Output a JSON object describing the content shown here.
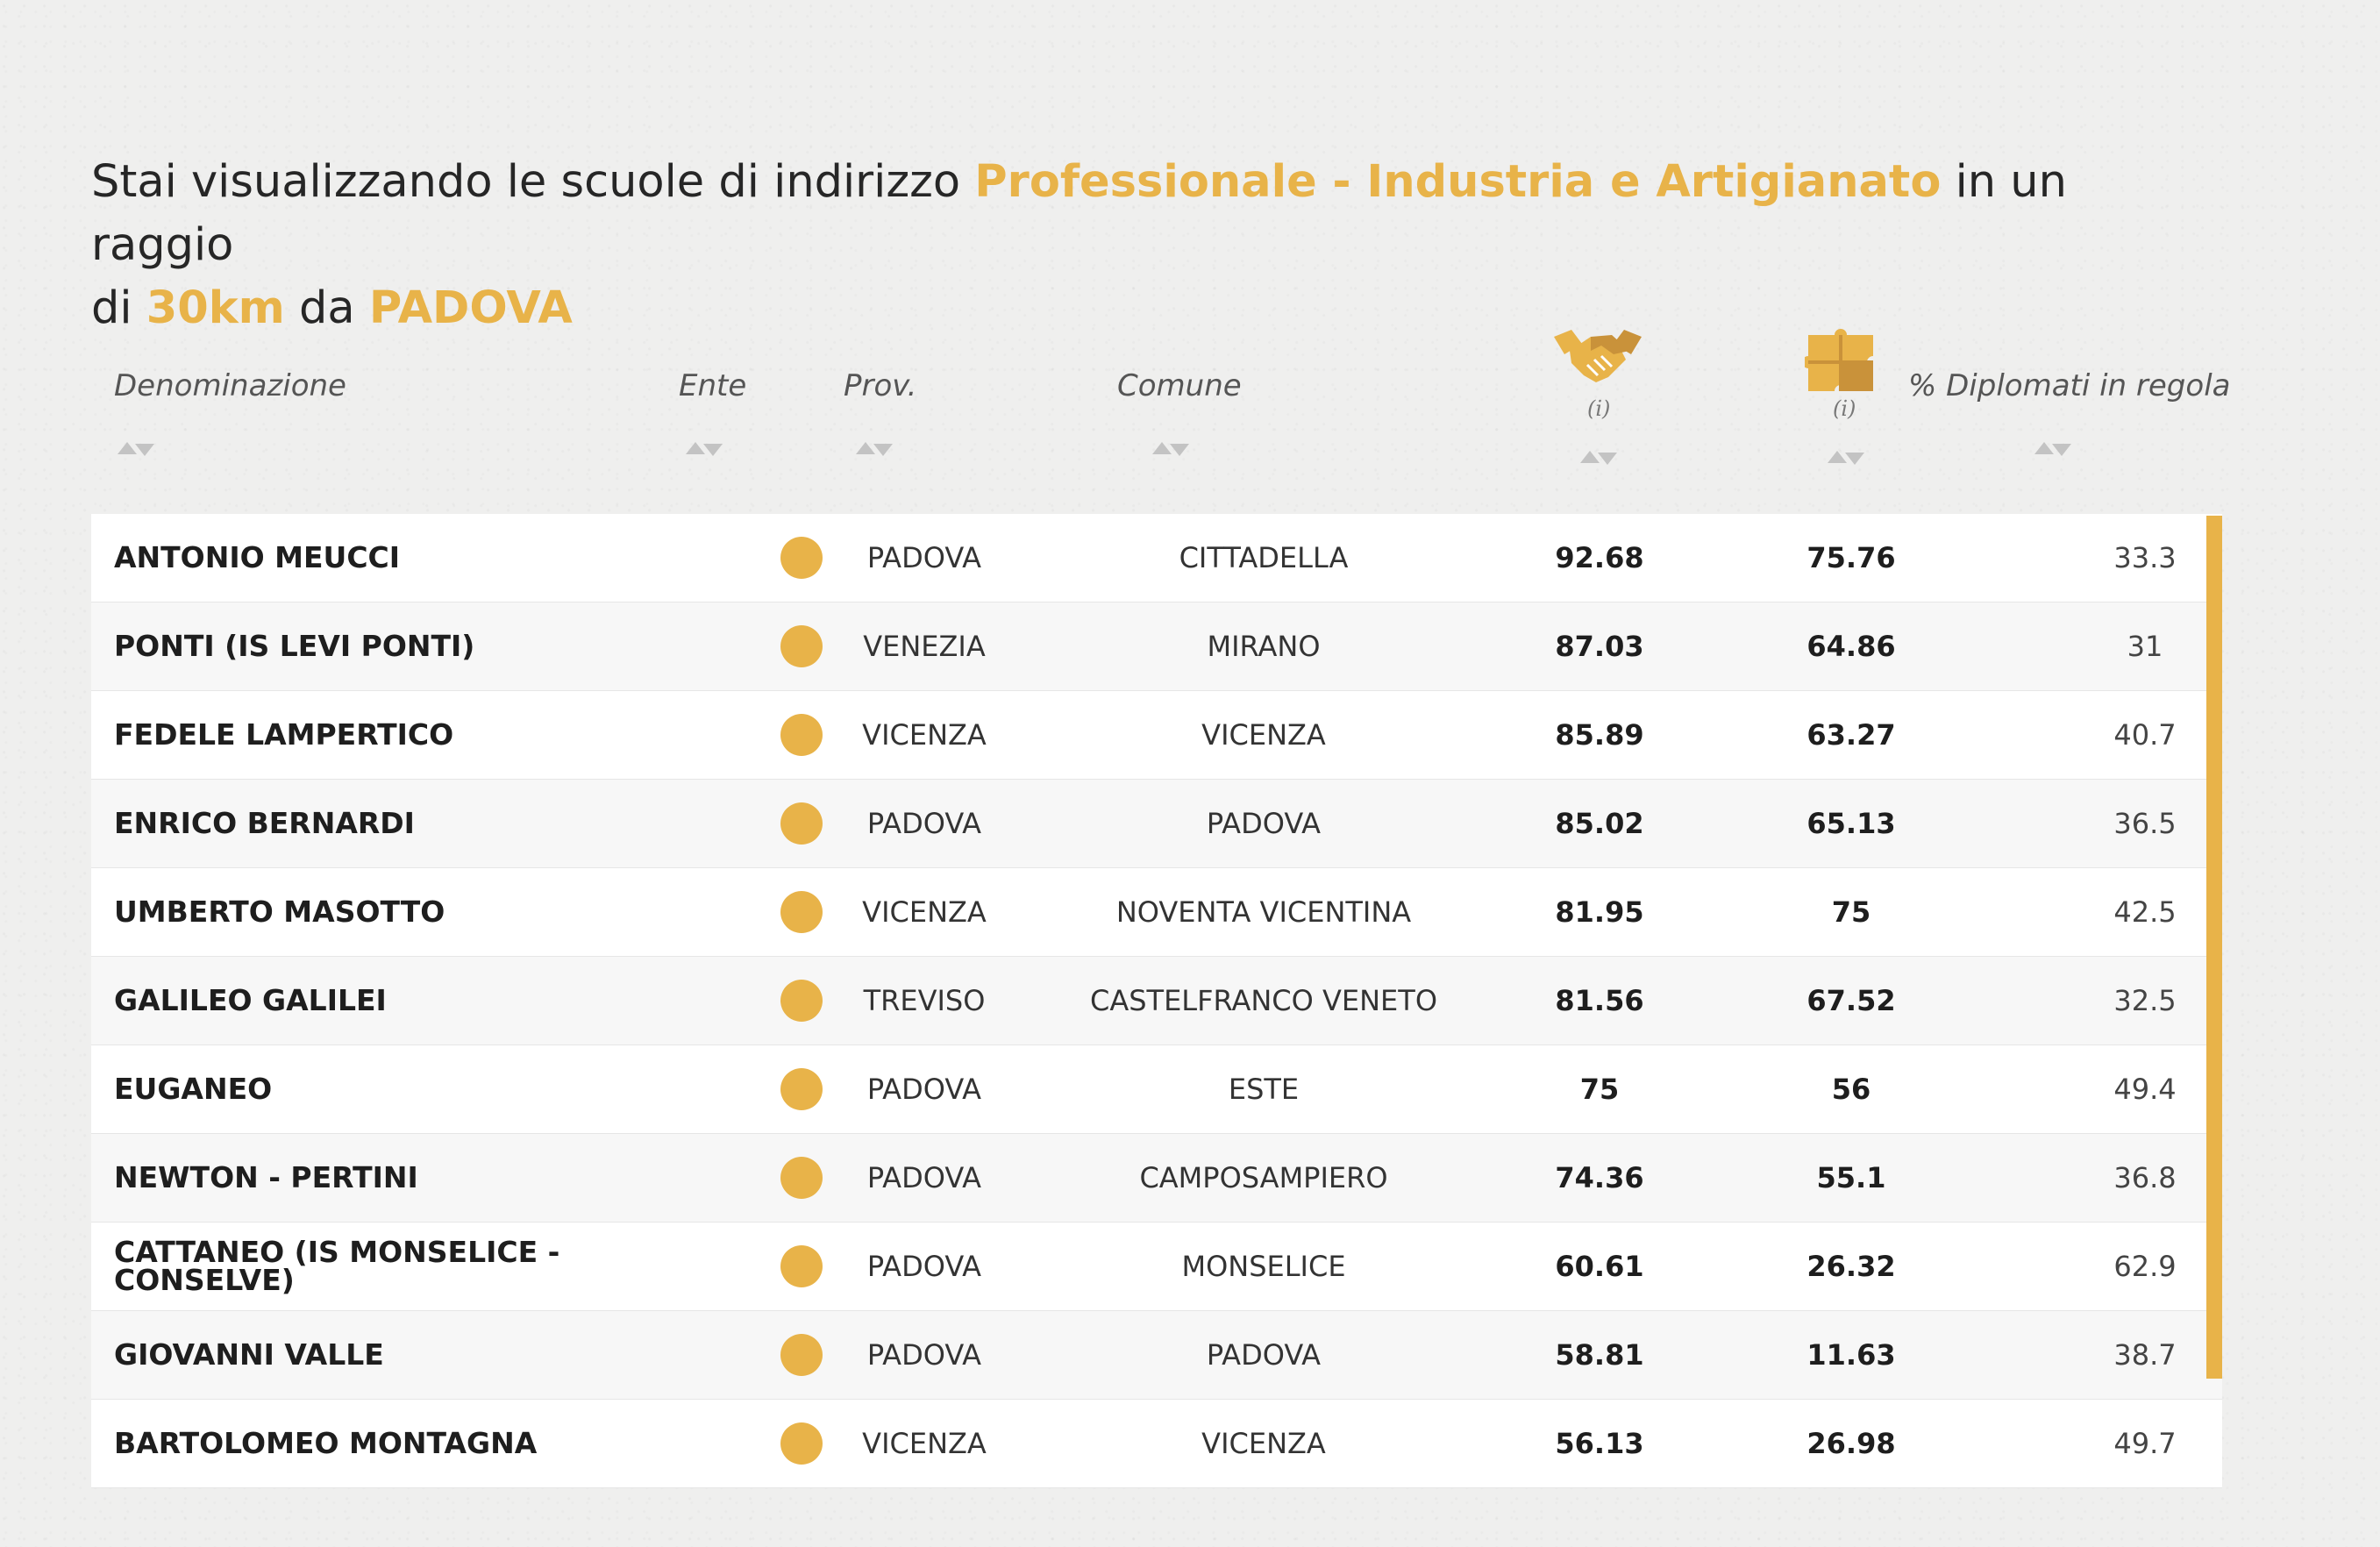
{
  "heading": {
    "prefix": "Stai visualizzando le scuole di indirizzo",
    "indirizzo": "Professionale - Industria e Artigianato",
    "middle": "in un raggio",
    "line2_prefix": "di",
    "raggio": "30km",
    "da": "da",
    "citta": "PADOVA"
  },
  "colors": {
    "accent": "#e8b349",
    "background": "#efefee",
    "text": "#262626"
  },
  "columns": {
    "denominazione": "Denominazione",
    "ente": "Ente",
    "prov": "Prov.",
    "comune": "Comune",
    "score1_icon": "handshake-icon",
    "score1_info": "(i)",
    "score2_icon": "puzzle-icon",
    "score2_info": "(i)",
    "diplomati": "% Diplomati in regola"
  },
  "rows": [
    {
      "name": "ANTONIO MEUCCI",
      "ente": "dot",
      "prov": "PADOVA",
      "comune": "CITTADELLA",
      "s1": "92.68",
      "s2": "75.76",
      "pct": "33.3"
    },
    {
      "name": "PONTI (IS LEVI PONTI)",
      "ente": "dot",
      "prov": "VENEZIA",
      "comune": "MIRANO",
      "s1": "87.03",
      "s2": "64.86",
      "pct": "31"
    },
    {
      "name": "FEDELE LAMPERTICO",
      "ente": "dot",
      "prov": "VICENZA",
      "comune": "VICENZA",
      "s1": "85.89",
      "s2": "63.27",
      "pct": "40.7"
    },
    {
      "name": "ENRICO BERNARDI",
      "ente": "dot",
      "prov": "PADOVA",
      "comune": "PADOVA",
      "s1": "85.02",
      "s2": "65.13",
      "pct": "36.5"
    },
    {
      "name": "UMBERTO MASOTTO",
      "ente": "dot",
      "prov": "VICENZA",
      "comune": "NOVENTA VICENTINA",
      "s1": "81.95",
      "s2": "75",
      "pct": "42.5"
    },
    {
      "name": "GALILEO GALILEI",
      "ente": "dot",
      "prov": "TREVISO",
      "comune": "CASTELFRANCO VENETO",
      "s1": "81.56",
      "s2": "67.52",
      "pct": "32.5"
    },
    {
      "name": "EUGANEO",
      "ente": "dot",
      "prov": "PADOVA",
      "comune": "ESTE",
      "s1": "75",
      "s2": "56",
      "pct": "49.4"
    },
    {
      "name": "NEWTON - PERTINI",
      "ente": "dot",
      "prov": "PADOVA",
      "comune": "CAMPOSAMPIERO",
      "s1": "74.36",
      "s2": "55.1",
      "pct": "36.8"
    },
    {
      "name": "CATTANEO (IS MONSELICE - CONSELVE)",
      "ente": "dot",
      "prov": "PADOVA",
      "comune": "MONSELICE",
      "s1": "60.61",
      "s2": "26.32",
      "pct": "62.9"
    },
    {
      "name": "GIOVANNI VALLE",
      "ente": "dot",
      "prov": "PADOVA",
      "comune": "PADOVA",
      "s1": "58.81",
      "s2": "11.63",
      "pct": "38.7"
    },
    {
      "name": "BARTOLOMEO MONTAGNA",
      "ente": "dot",
      "prov": "VICENZA",
      "comune": "VICENZA",
      "s1": "56.13",
      "s2": "26.98",
      "pct": "49.7"
    }
  ]
}
